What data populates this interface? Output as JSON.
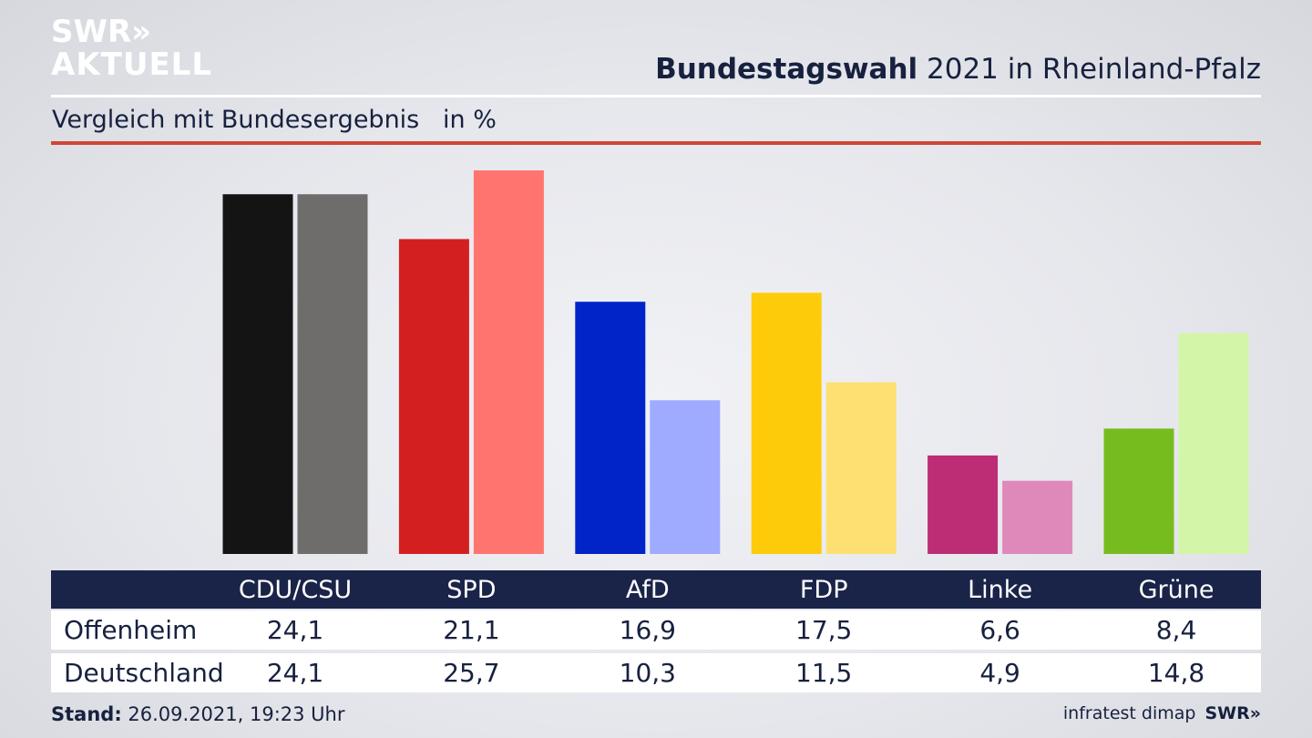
{
  "header": {
    "logo_line1": "SWR»",
    "logo_line2": "AKTUELL",
    "title_bold": "Bundestagswahl",
    "title_rest": " 2021 in Rheinland-Pfalz",
    "subtitle": "Vergleich mit Bundesergebnis   in %"
  },
  "colors": {
    "accent_line": "#cf4635",
    "table_header": "#1a2448"
  },
  "chart_data": {
    "type": "bar",
    "categories": [
      "CDU/CSU",
      "SPD",
      "AfD",
      "FDP",
      "Linke",
      "Grüne"
    ],
    "series": [
      {
        "name": "Offenheim",
        "values": [
          24.1,
          21.1,
          16.9,
          17.5,
          6.6,
          8.4
        ],
        "colors": [
          "#141414",
          "#d41f20",
          "#0024c8",
          "#fecb0b",
          "#bd2d76",
          "#76bc1f"
        ]
      },
      {
        "name": "Deutschland",
        "values": [
          24.1,
          25.7,
          10.3,
          11.5,
          4.9,
          14.8
        ],
        "colors": [
          "#6e6d6b",
          "#ff746e",
          "#9eabff",
          "#fedf72",
          "#df89bb",
          "#d3f5a8"
        ]
      }
    ],
    "ylim": [
      0,
      25.7
    ],
    "grid": false,
    "legend": "table-below"
  },
  "table": {
    "row_labels": [
      "Offenheim",
      "Deutschland"
    ],
    "rows": [
      [
        "24,1",
        "21,1",
        "16,9",
        "17,5",
        "6,6",
        "8,4"
      ],
      [
        "24,1",
        "25,7",
        "10,3",
        "11,5",
        "4,9",
        "14,8"
      ]
    ]
  },
  "footer": {
    "stand_label": "Stand:",
    "stand_value": " 26.09.2021, 19:23 Uhr",
    "source": "infratest dimap",
    "brand": "SWR»"
  }
}
